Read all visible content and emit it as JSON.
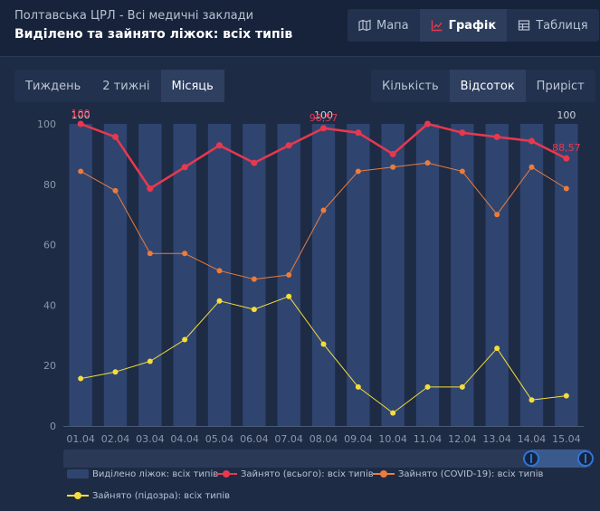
{
  "header": {
    "subtitle": "Полтавська ЦРЛ - Всі медичні заклади",
    "title": "Виділено та зайнято ліжок: всіх типів"
  },
  "views": [
    {
      "label": "Мапа",
      "icon": "map-icon",
      "active": false
    },
    {
      "label": "Графік",
      "icon": "line-chart-icon",
      "active": true
    },
    {
      "label": "Таблиця",
      "icon": "table-icon",
      "active": false
    }
  ],
  "periods": [
    {
      "label": "Тиждень",
      "active": false
    },
    {
      "label": "2 тижні",
      "active": false
    },
    {
      "label": "Місяць",
      "active": true
    }
  ],
  "modes": [
    {
      "label": "Кількість",
      "active": false
    },
    {
      "label": "Відсоток",
      "active": true
    },
    {
      "label": "Приріст",
      "active": false
    }
  ],
  "colors": {
    "bar": "#2f4570",
    "total": "#e8384f",
    "covid": "#ec7c3b",
    "suspect": "#f5dd3a",
    "accent": "#2f74d6"
  },
  "chart_data": {
    "type": "bar",
    "categories": [
      "01.04",
      "02.04",
      "03.04",
      "04.04",
      "05.04",
      "06.04",
      "07.04",
      "08.04",
      "09.04",
      "10.04",
      "11.04",
      "12.04",
      "13.04",
      "14.04",
      "15.04"
    ],
    "ylim": [
      0,
      100
    ],
    "yticks": [
      0,
      20,
      40,
      60,
      80,
      100
    ],
    "series": [
      {
        "name": "Виділено ліжок: всіх типів",
        "type": "bar",
        "values": [
          100,
          100,
          100,
          100,
          100,
          100,
          100,
          100,
          100,
          100,
          100,
          100,
          100,
          100,
          100
        ]
      },
      {
        "name": "Зайнято (всього): всіх типів",
        "type": "line",
        "values": [
          100,
          95.7,
          78.6,
          85.7,
          92.9,
          87.1,
          92.9,
          98.57,
          97.1,
          90,
          100,
          97.1,
          95.7,
          94.3,
          88.57
        ]
      },
      {
        "name": "Зайнято (COVID-19): всіх типів",
        "type": "line",
        "values": [
          84.3,
          77.9,
          57.1,
          57.1,
          51.4,
          48.6,
          50,
          71.4,
          84.3,
          85.7,
          87.1,
          84.3,
          70,
          85.7,
          78.6
        ]
      },
      {
        "name": "Зайнято (підозра): всіх типів",
        "type": "line",
        "values": [
          15.7,
          17.9,
          21.4,
          28.6,
          41.4,
          38.6,
          42.9,
          27.1,
          12.9,
          4.3,
          12.9,
          12.9,
          25.7,
          8.6,
          10
        ]
      }
    ],
    "data_labels": [
      {
        "series": 0,
        "index": 0,
        "text": "100"
      },
      {
        "series": 1,
        "index": 0,
        "text": "100"
      },
      {
        "series": 0,
        "index": 7,
        "text": "100"
      },
      {
        "series": 1,
        "index": 7,
        "text": "98,57"
      },
      {
        "series": 0,
        "index": 14,
        "text": "100"
      },
      {
        "series": 1,
        "index": 14,
        "text": "88,57"
      }
    ],
    "legend_position": "bottom"
  }
}
